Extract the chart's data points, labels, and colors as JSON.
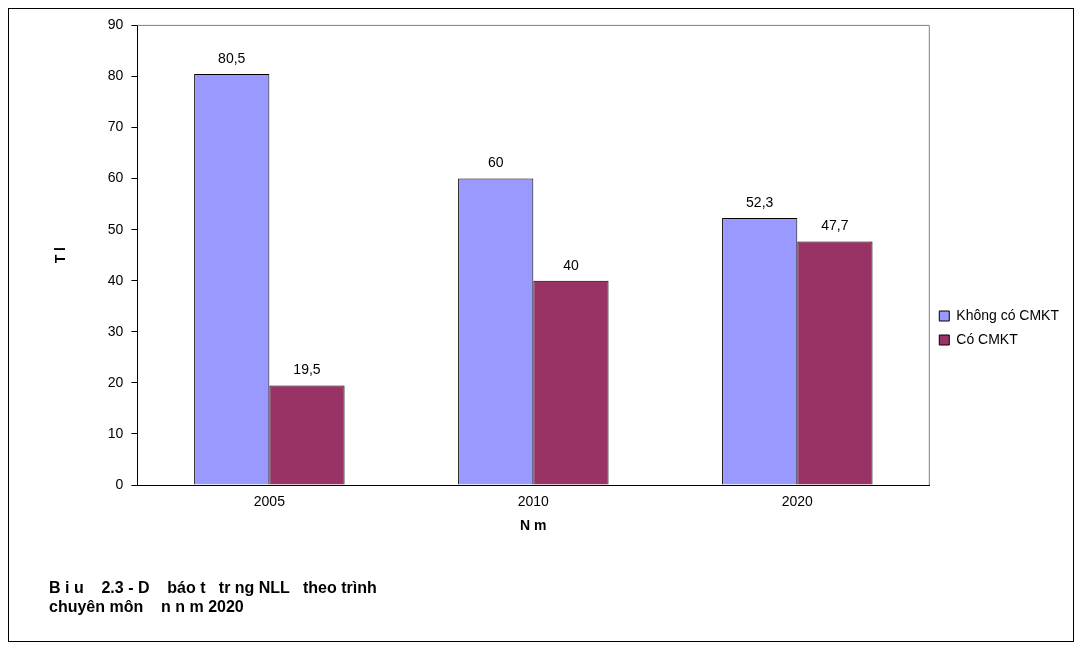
{
  "chart_data": {
    "type": "bar",
    "title": [
      "B i u    2.3 - D    báo t   tr ng NLL   theo trình",
      "chuyên môn    n n m 2020"
    ],
    "xlabel": "N m",
    "ylabel": "T l",
    "categories": [
      "2005",
      "2010",
      "2020"
    ],
    "series": [
      {
        "name": "Không có CMKT",
        "color": "#9999ff",
        "values": [
          80.5,
          60,
          52.3
        ],
        "value_labels": [
          "80,5",
          "60",
          "52,3"
        ]
      },
      {
        "name": "Có CMKT",
        "color": "#993366",
        "values": [
          19.5,
          40,
          47.7
        ],
        "value_labels": [
          "19,5",
          "40",
          "47,7"
        ]
      }
    ],
    "ylim": [
      0,
      90
    ],
    "yticks": [
      0,
      10,
      20,
      30,
      40,
      50,
      60,
      70,
      80,
      90
    ],
    "grid": false,
    "legend": "right"
  }
}
